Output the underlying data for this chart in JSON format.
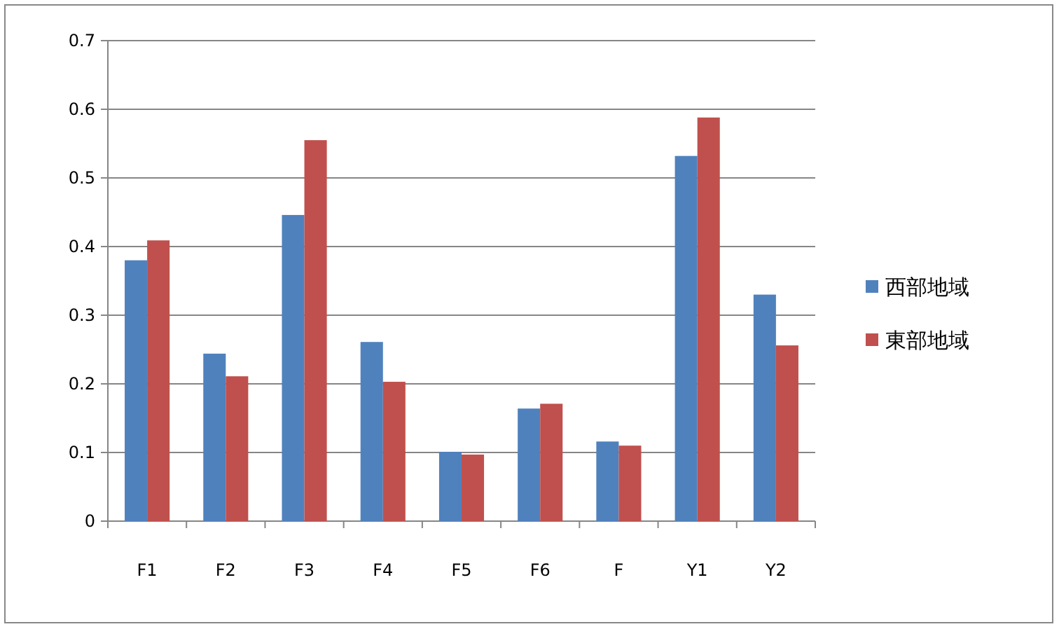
{
  "chart_data": {
    "type": "bar",
    "categories": [
      "F1",
      "F2",
      "F3",
      "F4",
      "F5",
      "F6",
      "F",
      "Y1",
      "Y2"
    ],
    "series": [
      {
        "name": "西部地域",
        "color": "#4f81bd",
        "values": [
          0.38,
          0.244,
          0.446,
          0.261,
          0.101,
          0.164,
          0.116,
          0.532,
          0.33
        ]
      },
      {
        "name": "東部地域",
        "color": "#c0504d",
        "values": [
          0.409,
          0.211,
          0.555,
          0.203,
          0.097,
          0.171,
          0.11,
          0.588,
          0.256
        ]
      }
    ],
    "ylim": [
      0,
      0.7
    ],
    "yticks": [
      0,
      0.1,
      0.2,
      0.3,
      0.4,
      0.5,
      0.6,
      0.7
    ],
    "grid": "y",
    "legend": "right"
  }
}
